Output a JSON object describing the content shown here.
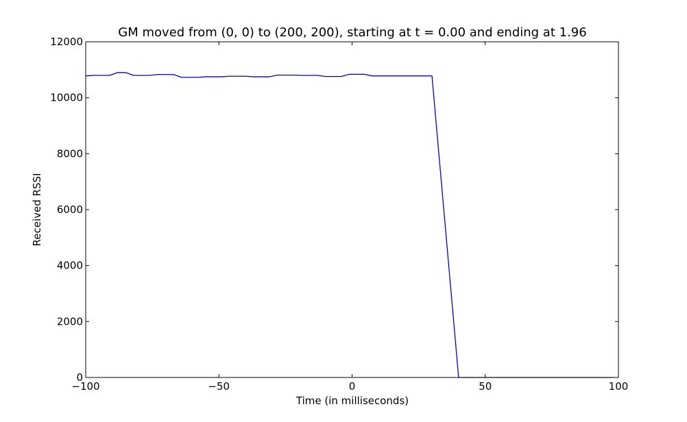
{
  "chart_data": {
    "type": "line",
    "title": "GM moved from (0, 0) to (200, 200), starting at t = 0.00 and ending at 1.96",
    "xlabel": "Time (in milliseconds)",
    "ylabel": "Received RSSI",
    "xlim": [
      -100,
      100
    ],
    "ylim": [
      0,
      12000
    ],
    "xticks": [
      -100,
      -50,
      0,
      50,
      100
    ],
    "xtick_labels": [
      "−100",
      "−50",
      "0",
      "50",
      "100"
    ],
    "yticks": [
      0,
      2000,
      4000,
      6000,
      8000,
      10000,
      12000
    ],
    "ytick_labels": [
      "0",
      "2000",
      "4000",
      "6000",
      "8000",
      "10000",
      "12000"
    ],
    "grid": false,
    "legend": "none",
    "series": [
      {
        "color": "#0000cc",
        "x": [
          -100,
          -97,
          -94,
          -91,
          -88,
          -85,
          -82,
          -79,
          -76,
          -73,
          -70,
          -67,
          -64,
          -61,
          -58,
          -55,
          -52,
          -49,
          -46,
          -43,
          -40,
          -37,
          -34,
          -31,
          -28,
          -25,
          -22,
          -19,
          -16,
          -13,
          -10,
          -7,
          -4,
          -1,
          2,
          4.5,
          7.5,
          10,
          20,
          30,
          40,
          50,
          60,
          70,
          80,
          90,
          98
        ],
        "y": [
          10780,
          10800,
          10800,
          10800,
          10900,
          10900,
          10800,
          10800,
          10800,
          10830,
          10830,
          10830,
          10730,
          10730,
          10730,
          10750,
          10750,
          10750,
          10770,
          10770,
          10770,
          10750,
          10750,
          10750,
          10810,
          10810,
          10810,
          10800,
          10800,
          10800,
          10760,
          10760,
          10760,
          10840,
          10840,
          10840,
          10780,
          10780,
          10780,
          10780,
          0,
          0,
          0,
          0,
          0,
          0,
          0
        ]
      }
    ]
  }
}
